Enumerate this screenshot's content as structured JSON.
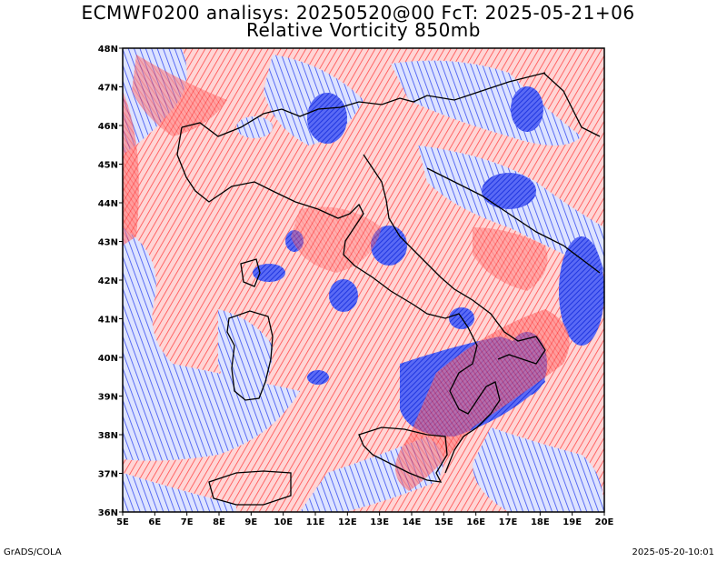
{
  "header": {
    "line1": "ECMWF0200 analisys: 20250520@00 FcT: 2025-05-21+06",
    "line2": "Relative Vorticity 850mb"
  },
  "footer": {
    "left": "GrADS/COLA",
    "right": "2025-05-20-10:01"
  },
  "map": {
    "lon_range": [
      5,
      20
    ],
    "lat_range": [
      36,
      48
    ],
    "lon_ticks": [
      "5E",
      "6E",
      "7E",
      "8E",
      "9E",
      "10E",
      "11E",
      "12E",
      "13E",
      "14E",
      "15E",
      "16E",
      "17E",
      "18E",
      "19E",
      "20E"
    ],
    "lat_ticks": [
      "48N",
      "47N",
      "46N",
      "45N",
      "44N",
      "43N",
      "42N",
      "41N",
      "40N",
      "39N",
      "38N",
      "37N",
      "36N"
    ],
    "colors": {
      "positive_contours": "#ff4040",
      "negative_contours": "#3050f0",
      "coastline": "#000000"
    }
  }
}
